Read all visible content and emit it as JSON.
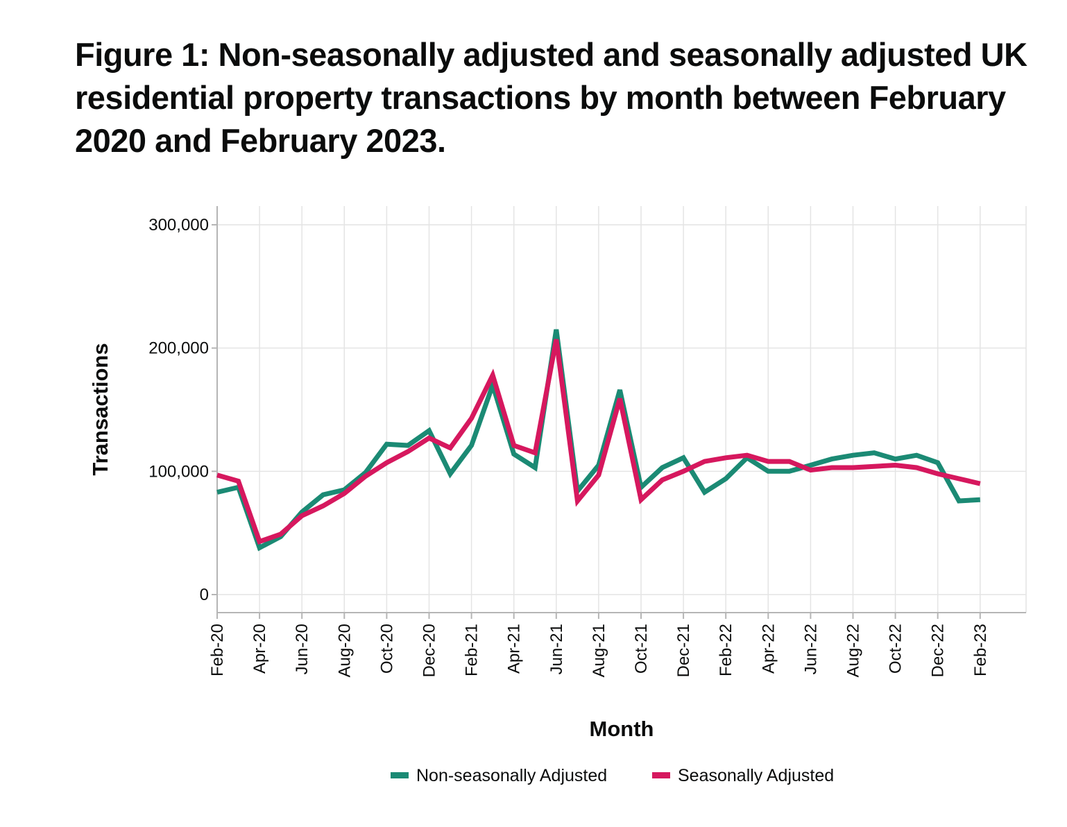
{
  "chart_data": {
    "type": "line",
    "title": "Figure 1: Non-seasonally adjusted and seasonally adjusted UK residential property transactions by month between February 2020 and February 2023.",
    "xlabel": "Month",
    "ylabel": "Transactions",
    "ylim": [
      0,
      300000
    ],
    "y_ticks": [
      0,
      100000,
      200000,
      300000
    ],
    "y_tick_labels": [
      "0",
      "100,000",
      "200,000",
      "300,000"
    ],
    "x_ticks": [
      "Feb-20",
      "Apr-20",
      "Jun-20",
      "Aug-20",
      "Oct-20",
      "Dec-20",
      "Feb-21",
      "Apr-21",
      "Jun-21",
      "Aug-21",
      "Oct-21",
      "Dec-21",
      "Feb-22",
      "Apr-22",
      "Jun-22",
      "Aug-22",
      "Oct-22",
      "Dec-22",
      "Feb-23"
    ],
    "x": [
      "Feb-20",
      "Mar-20",
      "Apr-20",
      "May-20",
      "Jun-20",
      "Jul-20",
      "Aug-20",
      "Sep-20",
      "Oct-20",
      "Nov-20",
      "Dec-20",
      "Jan-21",
      "Feb-21",
      "Mar-21",
      "Apr-21",
      "May-21",
      "Jun-21",
      "Jul-21",
      "Aug-21",
      "Sep-21",
      "Oct-21",
      "Nov-21",
      "Dec-21",
      "Jan-22",
      "Feb-22",
      "Mar-22",
      "Apr-22",
      "May-22",
      "Jun-22",
      "Jul-22",
      "Aug-22",
      "Sep-22",
      "Oct-22",
      "Nov-22",
      "Dec-22",
      "Jan-23",
      "Feb-23"
    ],
    "series": [
      {
        "name": "Non-seasonally Adjusted",
        "color": "#1b8a74",
        "values": [
          83000,
          87000,
          38000,
          47000,
          67000,
          81000,
          85000,
          99000,
          122000,
          121000,
          133000,
          98000,
          121000,
          170000,
          114000,
          103000,
          215000,
          84000,
          105000,
          166000,
          87000,
          103000,
          111000,
          83000,
          94000,
          111000,
          100000,
          100000,
          105000,
          110000,
          113000,
          115000,
          110000,
          113000,
          107000,
          76000,
          77000
        ]
      },
      {
        "name": "Seasonally Adjusted",
        "color": "#d6185e",
        "values": [
          97000,
          92000,
          43000,
          49000,
          64000,
          72000,
          82000,
          96000,
          107000,
          116000,
          127000,
          119000,
          143000,
          178000,
          121000,
          115000,
          207000,
          76000,
          97000,
          159000,
          77000,
          93000,
          100000,
          108000,
          111000,
          113000,
          108000,
          108000,
          101000,
          103000,
          103000,
          104000,
          105000,
          103000,
          98000,
          94000,
          90000
        ]
      }
    ],
    "legend": "bottom"
  }
}
